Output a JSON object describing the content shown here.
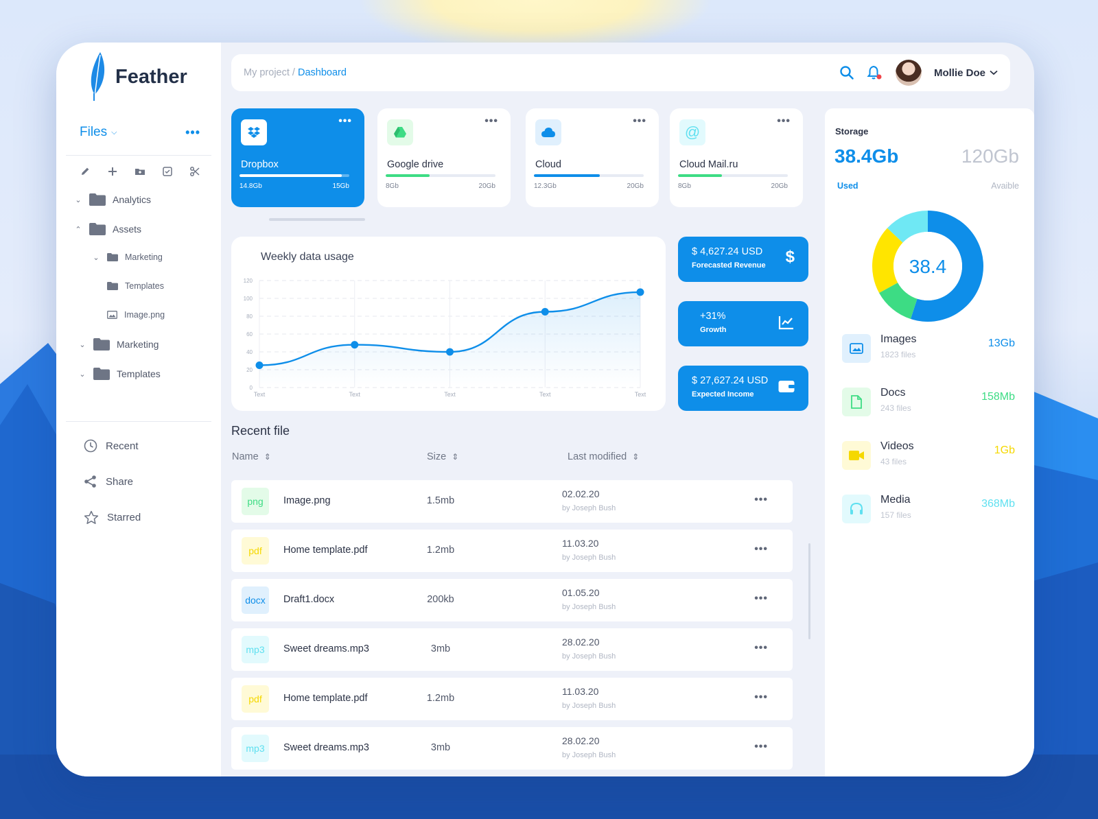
{
  "app": {
    "name": "Feather"
  },
  "sidebar": {
    "files_label": "Files",
    "tree": [
      {
        "label": "Analytics"
      },
      {
        "label": "Assets"
      },
      {
        "label": "Marketing"
      },
      {
        "label": "Templates"
      },
      {
        "label": "Image.png"
      },
      {
        "label": "Marketing"
      },
      {
        "label": "Templates"
      }
    ],
    "nav": [
      {
        "label": "Recent"
      },
      {
        "label": "Share"
      },
      {
        "label": "Starred"
      }
    ]
  },
  "header": {
    "breadcrumb_root": "My project",
    "breadcrumb_sep": " / ",
    "breadcrumb_current": "Dashboard",
    "user_name": "Mollie Doe"
  },
  "storage_cards": [
    {
      "name": "Dropbox",
      "used": "14.8Gb",
      "total": "15Gb",
      "fill": 0.93,
      "color": "#ffffff",
      "icon": "dropbox-icon"
    },
    {
      "name": "Google drive",
      "used": "8Gb",
      "total": "20Gb",
      "fill": 0.4,
      "color": "#3ddc84",
      "icon": "google-drive-icon"
    },
    {
      "name": "Cloud",
      "used": "12.3Gb",
      "total": "20Gb",
      "fill": 0.6,
      "color": "#0e8ee9",
      "icon": "cloud-icon"
    },
    {
      "name": "Cloud Mail.ru",
      "used": "8Gb",
      "total": "20Gb",
      "fill": 0.4,
      "color": "#3ddc84",
      "icon": "at-icon"
    }
  ],
  "chart_data": {
    "type": "line",
    "title": "Weekly data usage",
    "categories": [
      "Text",
      "Text",
      "Text",
      "Text",
      "Text"
    ],
    "values": [
      25,
      48,
      40,
      85,
      107
    ],
    "yticks": [
      0,
      20,
      40,
      60,
      80,
      100,
      120
    ],
    "ylim": [
      0,
      120
    ],
    "grid": true,
    "color": "#0e8ee9"
  },
  "kpis": [
    {
      "value": "$ 4,627.24 USD",
      "label": "Forecasted Revenue",
      "icon": "dollar-icon"
    },
    {
      "value": "+31%",
      "label": "Growth",
      "icon": "trend-chart-icon"
    },
    {
      "value": "$ 27,627.24 USD",
      "label": "Expected Income",
      "icon": "wallet-icon"
    }
  ],
  "recent": {
    "title": "Recent file",
    "columns": {
      "name": "Name",
      "size": "Size",
      "modified": "Last modified"
    },
    "rows": [
      {
        "ext": "png",
        "name": "Image.png",
        "size": "1.5mb",
        "date": "02.02.20",
        "by": "by Joseph Bush",
        "bg": "#e3fbe8",
        "fg": "#3ddc84"
      },
      {
        "ext": "pdf",
        "name": "Home template.pdf",
        "size": "1.2mb",
        "date": "11.03.20",
        "by": "by Joseph Bush",
        "bg": "#fffad6",
        "fg": "#f5d800"
      },
      {
        "ext": "docx",
        "name": "Draft1.docx",
        "size": "200kb",
        "date": "01.05.20",
        "by": "by Joseph Bush",
        "bg": "#e0f0fd",
        "fg": "#0e8ee9"
      },
      {
        "ext": "mp3",
        "name": "Sweet dreams.mp3",
        "size": "3mb",
        "date": "28.02.20",
        "by": "by Joseph Bush",
        "bg": "#e2fafd",
        "fg": "#5fe0f0"
      },
      {
        "ext": "pdf",
        "name": "Home template.pdf",
        "size": "1.2mb",
        "date": "11.03.20",
        "by": "by Joseph Bush",
        "bg": "#fffad6",
        "fg": "#f5d800"
      },
      {
        "ext": "mp3",
        "name": "Sweet dreams.mp3",
        "size": "3mb",
        "date": "28.02.20",
        "by": "by Joseph Bush",
        "bg": "#e2fafd",
        "fg": "#5fe0f0"
      }
    ]
  },
  "storage": {
    "title": "Storage",
    "used": "38.4Gb",
    "total": "120Gb",
    "used_label": "Used",
    "total_label": "Avaible",
    "center": "38.4",
    "segments": [
      {
        "value": 0.55,
        "color": "#0e8ee9"
      },
      {
        "value": 0.12,
        "color": "#3ddc84"
      },
      {
        "value": 0.2,
        "color": "#ffe500"
      },
      {
        "value": 0.13,
        "color": "#6fe8f4"
      }
    ],
    "categories": [
      {
        "name": "Images",
        "count": "1823 files",
        "size": "13Gb",
        "color": "#0e8ee9",
        "bg": "#e0f0fd",
        "icon": "image-icon"
      },
      {
        "name": "Docs",
        "count": "243 files",
        "size": "158Mb",
        "color": "#3ddc84",
        "bg": "#e3fbe8",
        "icon": "document-icon"
      },
      {
        "name": "Videos",
        "count": "43 files",
        "size": "1Gb",
        "color": "#f5d800",
        "bg": "#fffad6",
        "icon": "video-icon"
      },
      {
        "name": "Media",
        "count": "157 files",
        "size": "368Mb",
        "color": "#5fe0f0",
        "bg": "#e2fafd",
        "icon": "headphones-icon"
      }
    ]
  }
}
